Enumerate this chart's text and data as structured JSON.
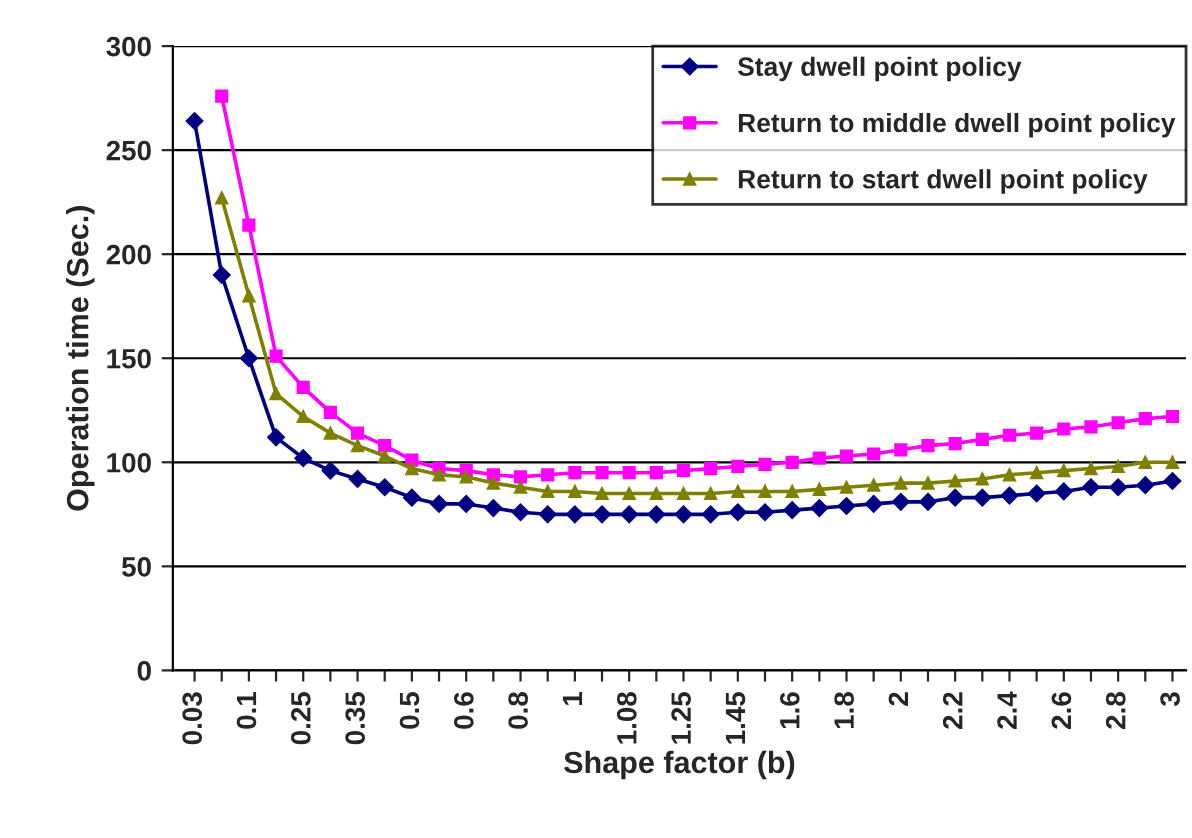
{
  "chart_data": {
    "type": "line",
    "xlabel": "Shape factor (b)",
    "ylabel": "Operation time (Sec.)",
    "categories": [
      "0.03",
      null,
      "0.1",
      null,
      "0.25",
      null,
      "0.35",
      null,
      "0.5",
      null,
      "0.6",
      null,
      "0.8",
      null,
      "1",
      null,
      "1.08",
      null,
      "1.25",
      null,
      "1.45",
      null,
      "1.6",
      null,
      "1.8",
      null,
      "2",
      null,
      "2.2",
      null,
      "2.4",
      null,
      "2.6",
      null,
      "2.8",
      null,
      "3"
    ],
    "series": [
      {
        "name": "Stay dwell point policy",
        "color": "#000080",
        "marker": "diamond",
        "values": [
          264,
          190,
          150,
          112,
          102,
          96,
          92,
          88,
          83,
          80,
          80,
          78,
          76,
          75,
          75,
          75,
          75,
          75,
          75,
          75,
          76,
          76,
          77,
          78,
          79,
          80,
          81,
          81,
          83,
          83,
          84,
          85,
          86,
          88,
          88,
          89,
          91
        ]
      },
      {
        "name": "Return to middle dwell point policy",
        "color": "#ff00ff",
        "marker": "square",
        "values": [
          null,
          276,
          214,
          151,
          136,
          124,
          114,
          108,
          101,
          97,
          96,
          94,
          93,
          94,
          95,
          95,
          95,
          95,
          96,
          97,
          98,
          99,
          100,
          102,
          103,
          104,
          106,
          108,
          109,
          111,
          113,
          114,
          116,
          117,
          119,
          121,
          122
        ]
      },
      {
        "name": "Return to start dwell point policy",
        "color": "#808000",
        "marker": "triangle",
        "values": [
          null,
          227,
          180,
          133,
          122,
          114,
          108,
          103,
          97,
          94,
          93,
          90,
          88,
          86,
          86,
          85,
          85,
          85,
          85,
          85,
          86,
          86,
          86,
          87,
          88,
          89,
          90,
          90,
          91,
          92,
          94,
          95,
          96,
          97,
          98,
          100,
          100
        ]
      }
    ],
    "ylim": [
      0,
      300
    ],
    "yticks": [
      0,
      50,
      100,
      150,
      200,
      250,
      300
    ],
    "grid": "y",
    "legend": "top right",
    "line_style": "solid"
  }
}
